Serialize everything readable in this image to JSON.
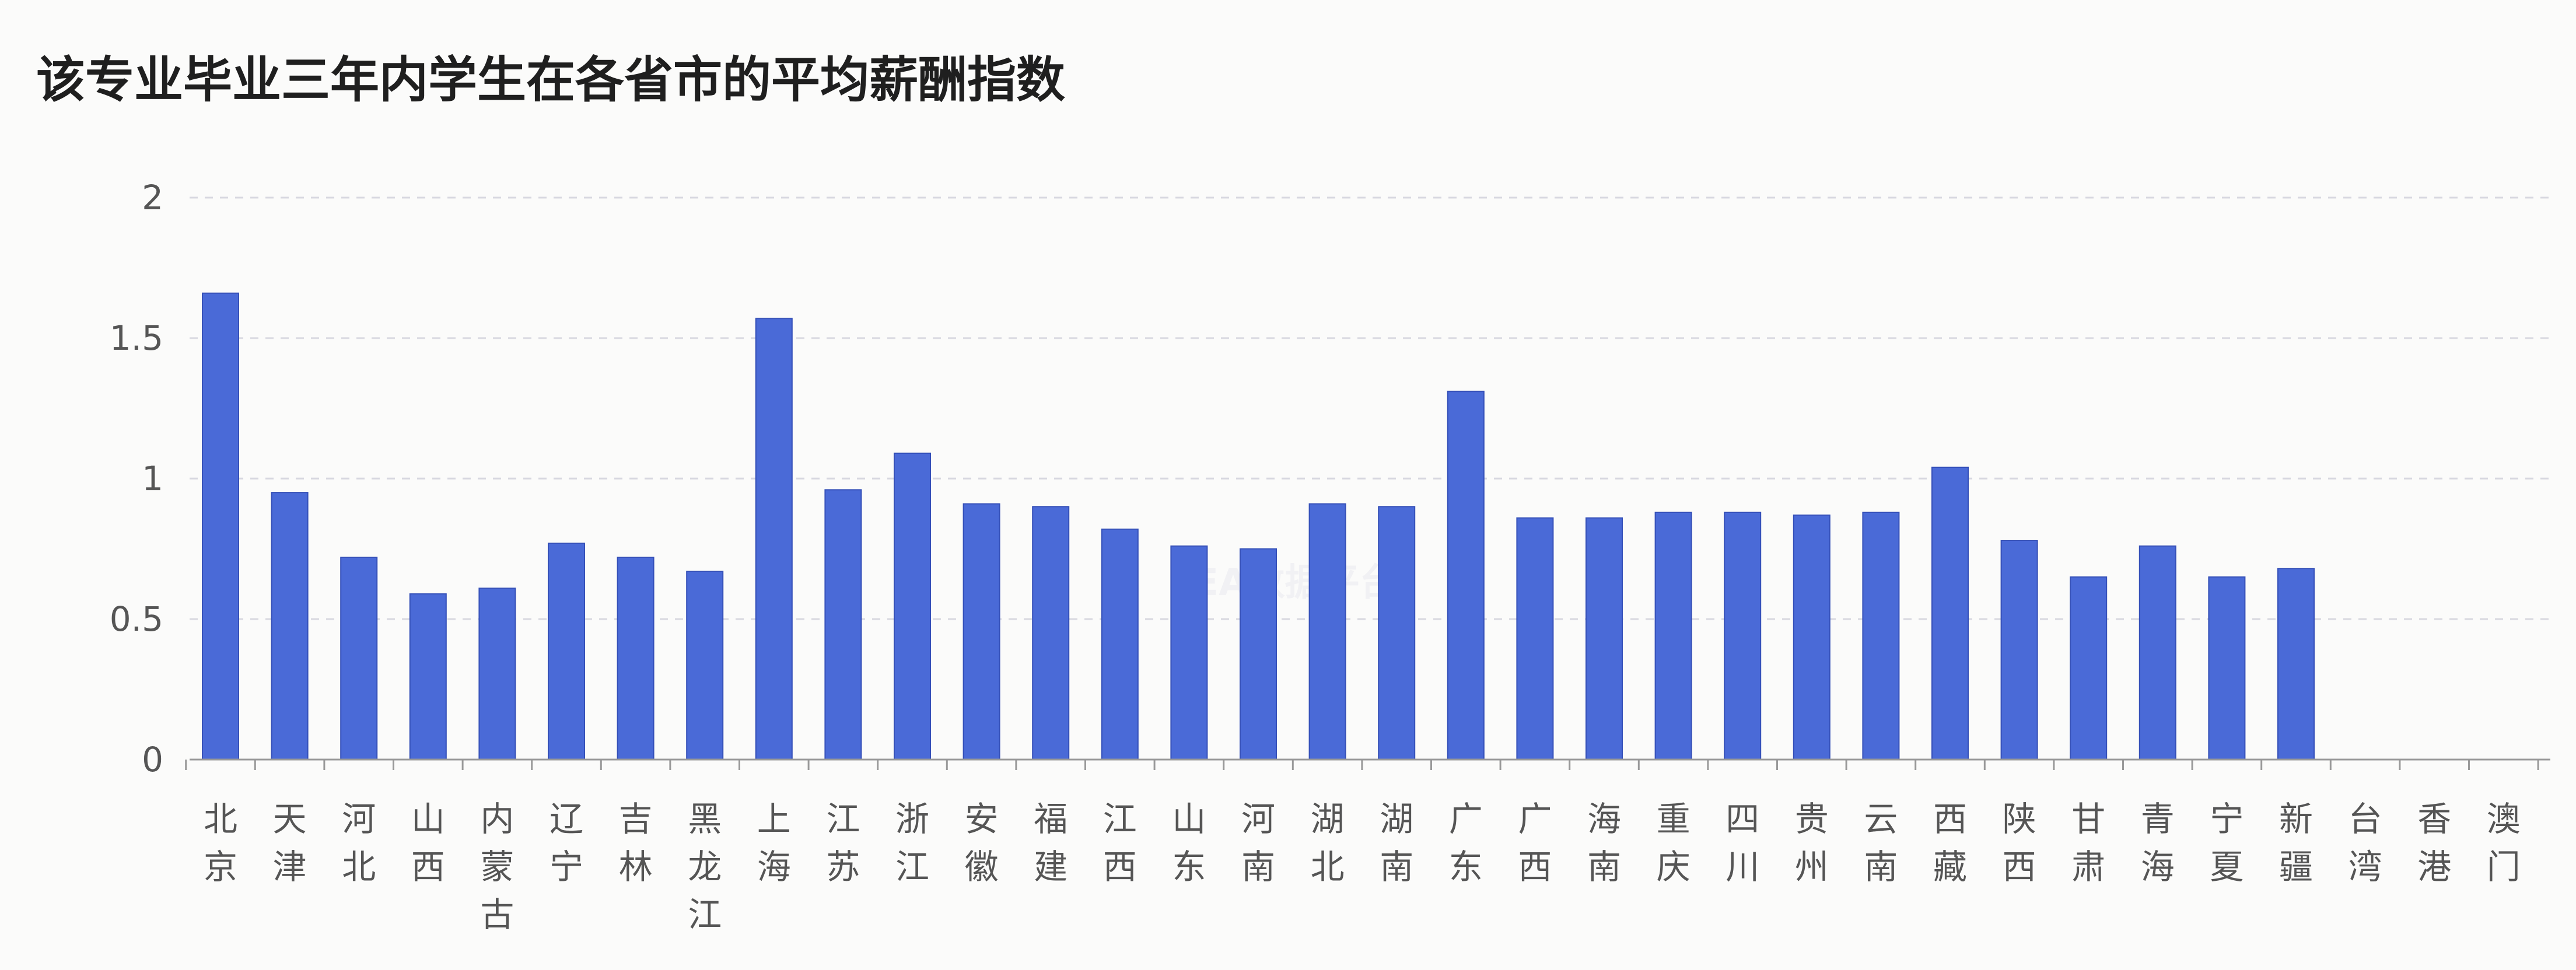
{
  "chart_data": {
    "type": "bar",
    "title": "该专业毕业三年内学生在各省市的平均薪酬指数",
    "xlabel": "",
    "ylabel": "",
    "ylim": [
      0,
      2
    ],
    "yticks": [
      0,
      0.5,
      1,
      1.5,
      2
    ],
    "ytick_labels": [
      "0",
      "0.5",
      "1",
      "1.5",
      "2"
    ],
    "grid": "horizontal-dashed",
    "categories": [
      "北京",
      "天津",
      "河北",
      "山西",
      "内蒙古",
      "辽宁",
      "吉林",
      "黑龙江",
      "上海",
      "江苏",
      "浙江",
      "安徽",
      "福建",
      "江西",
      "山东",
      "河南",
      "湖北",
      "湖南",
      "广东",
      "广西",
      "海南",
      "重庆",
      "四川",
      "贵州",
      "云南",
      "西藏",
      "陕西",
      "甘肃",
      "青海",
      "宁夏",
      "新疆",
      "台湾",
      "香港",
      "澳门"
    ],
    "values": [
      1.66,
      0.95,
      0.72,
      0.59,
      0.61,
      0.77,
      0.72,
      0.67,
      1.57,
      0.96,
      1.09,
      0.91,
      0.9,
      0.82,
      0.76,
      0.75,
      0.91,
      0.9,
      1.31,
      0.86,
      0.86,
      0.88,
      0.88,
      0.87,
      0.88,
      1.04,
      0.78,
      0.65,
      0.76,
      0.65,
      0.68,
      null,
      null,
      null
    ],
    "bar_color": "#4a6ad7",
    "bar_edge_color": "#3550b8",
    "axis_color": "#999999",
    "grid_color": "#d8d8e0"
  },
  "watermark": "EA数据平台"
}
